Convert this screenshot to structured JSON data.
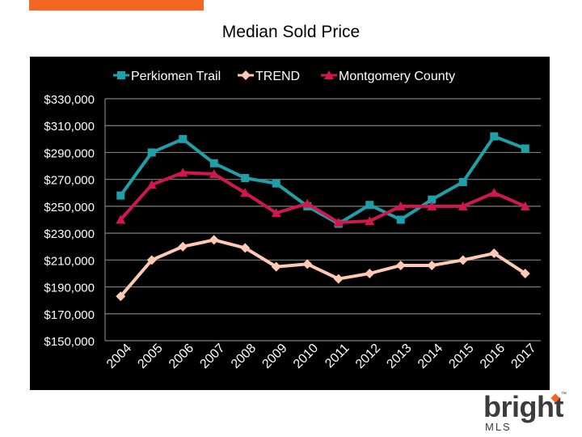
{
  "header": {
    "title": "Median Sold Price"
  },
  "brand": {
    "name": "bright",
    "sub": "MLS",
    "tm": "™",
    "accent": "#f26522"
  },
  "colors": {
    "background": "#000000",
    "grid": "#7f7f7f",
    "text": "#ffffff"
  },
  "chart_data": {
    "type": "line",
    "title": "Median Sold Price",
    "x": [
      "2004",
      "2005",
      "2006",
      "2007",
      "2008",
      "2009",
      "2010",
      "2011",
      "2012",
      "2013",
      "2014",
      "2015",
      "2016",
      "2017"
    ],
    "ylim": [
      150000,
      330000
    ],
    "yticks": [
      150000,
      170000,
      190000,
      210000,
      230000,
      250000,
      270000,
      290000,
      310000,
      330000
    ],
    "ytick_labels": [
      "$150,000",
      "$170,000",
      "$190,000",
      "$210,000",
      "$230,000",
      "$250,000",
      "$270,000",
      "$290,000",
      "$310,000",
      "$330,000"
    ],
    "grid": true,
    "legend": "top",
    "series": [
      {
        "name": "Perkiomen Trail",
        "color": "#1fa0a8",
        "marker": "square",
        "values": [
          258000,
          290000,
          300000,
          282000,
          271000,
          267000,
          250000,
          237000,
          251000,
          240000,
          255000,
          268000,
          302000,
          293000
        ]
      },
      {
        "name": "TREND",
        "color": "#ffc9b3",
        "marker": "diamond",
        "values": [
          183000,
          210000,
          220000,
          225000,
          219000,
          205000,
          207000,
          196000,
          200000,
          206000,
          206000,
          210000,
          215000,
          200000
        ]
      },
      {
        "name": "Montgomery County",
        "color": "#d0184f",
        "marker": "triangle",
        "values": [
          240000,
          266000,
          275000,
          274000,
          260000,
          245000,
          252000,
          238000,
          239000,
          250000,
          250000,
          250000,
          260000,
          250000
        ]
      }
    ]
  }
}
